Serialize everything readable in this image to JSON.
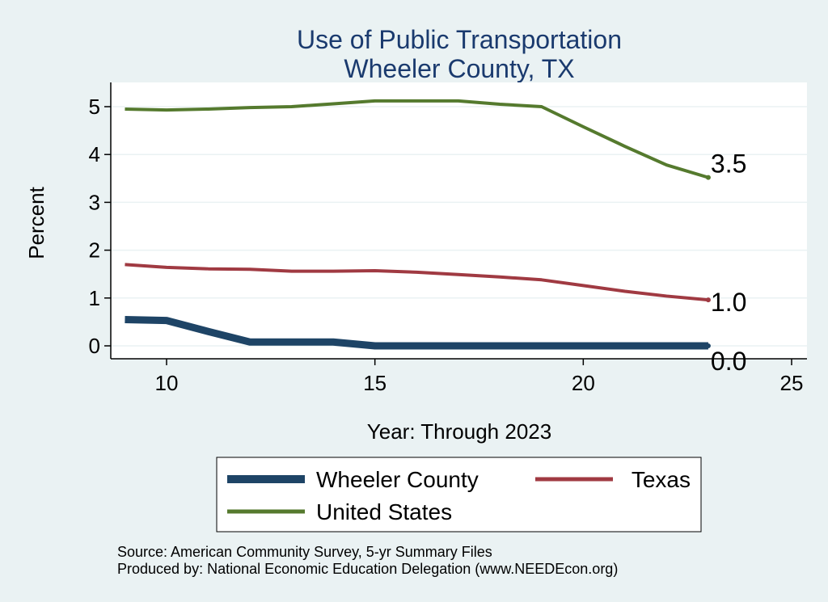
{
  "chart_data": {
    "type": "line",
    "title": "Use of Public Transportation",
    "subtitle": "Wheeler County, TX",
    "xlabel": "Year: Through 2023",
    "ylabel": "Percent",
    "xlim": [
      9,
      25
    ],
    "ylim": [
      0,
      5
    ],
    "x_ticks": [
      10,
      15,
      20,
      25
    ],
    "y_ticks": [
      0,
      1,
      2,
      3,
      4,
      5
    ],
    "grid": true,
    "legend_position": "bottom",
    "series": [
      {
        "name": "Wheeler County",
        "color": "#1E4466",
        "x": [
          9,
          10,
          11,
          12,
          13,
          14,
          15,
          16,
          17,
          18,
          19,
          20,
          21,
          22,
          23
        ],
        "values": [
          0.55,
          0.53,
          0.3,
          0.08,
          0.08,
          0.08,
          0.0,
          0.0,
          0.0,
          0.0,
          0.0,
          0.0,
          0.0,
          0.0,
          0.0
        ],
        "end_label": "0.0"
      },
      {
        "name": "Texas",
        "color": "#A03A42",
        "x": [
          9,
          10,
          11,
          12,
          13,
          14,
          15,
          16,
          17,
          18,
          19,
          20,
          21,
          22,
          23
        ],
        "values": [
          1.7,
          1.64,
          1.61,
          1.6,
          1.56,
          1.56,
          1.57,
          1.54,
          1.49,
          1.44,
          1.38,
          1.26,
          1.14,
          1.04,
          0.96
        ],
        "end_label": "1.0"
      },
      {
        "name": "United States",
        "color": "#557A2E",
        "x": [
          9,
          10,
          11,
          12,
          13,
          14,
          15,
          16,
          17,
          18,
          19,
          20,
          21,
          22,
          23
        ],
        "values": [
          4.95,
          4.93,
          4.95,
          4.98,
          5.0,
          5.06,
          5.12,
          5.12,
          5.12,
          5.05,
          5.0,
          4.58,
          4.17,
          3.78,
          3.52
        ],
        "end_label": "3.5"
      }
    ],
    "legend_order": [
      "Wheeler County",
      "Texas",
      "United States"
    ]
  },
  "notes": {
    "source": "Source: American Community Survey, 5-yr Summary Files",
    "produced": "Produced by: National Economic Education Delegation (www.NEEDEcon.org)"
  }
}
